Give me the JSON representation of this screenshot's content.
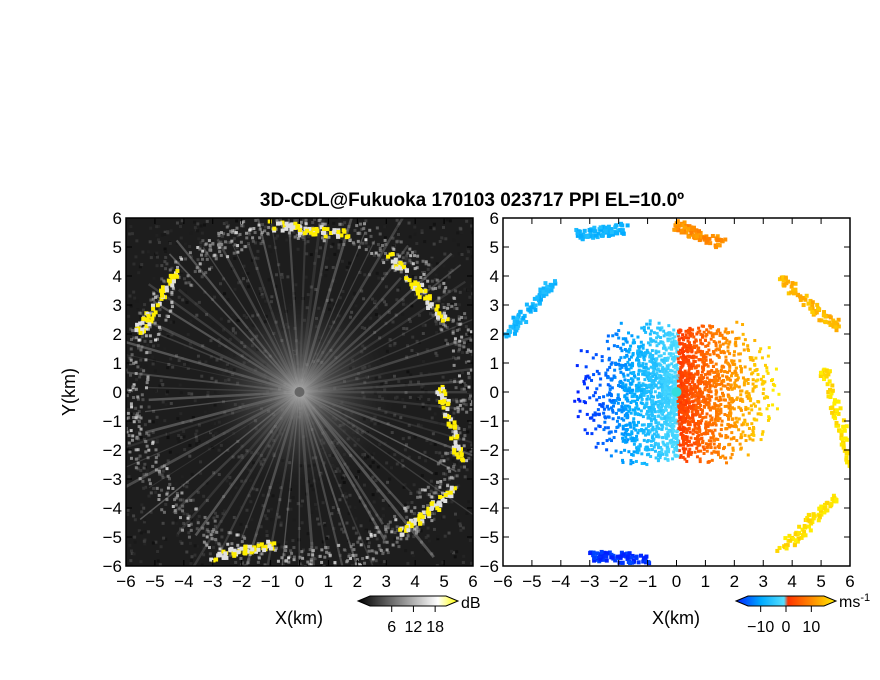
{
  "title": "3D-CDL@Fukuoka 170103 023717 PPI EL=10.0º",
  "chart_data": [
    {
      "type": "heatmap",
      "panel": "left",
      "quantity": "reflectivity",
      "xlabel": "X(km)",
      "ylabel": "Y(km)",
      "xlim": [
        -6,
        6
      ],
      "ylim": [
        -6,
        6
      ],
      "xticks": [
        -6,
        -5,
        -4,
        -3,
        -2,
        -1,
        0,
        1,
        2,
        3,
        4,
        5,
        6
      ],
      "yticks": [
        -6,
        -5,
        -4,
        -3,
        -2,
        -1,
        0,
        1,
        2,
        3,
        4,
        5,
        6
      ],
      "colorbar": {
        "label": "dB",
        "ticks": [
          6,
          12,
          18
        ],
        "range": [
          0,
          21
        ],
        "colors": [
          "#000000",
          "#ffffff",
          "#ffff00"
        ]
      },
      "radar_center": [
        0,
        0
      ],
      "echo_ring_radius_km": [
        5.3,
        6.0
      ],
      "strong_echo_segments_km": [
        {
          "from": [
            -5.7,
            2.0
          ],
          "to": [
            -4.3,
            4.2
          ]
        },
        {
          "from": [
            -1.0,
            5.8
          ],
          "to": [
            1.5,
            5.5
          ]
        },
        {
          "from": [
            3.0,
            4.8
          ],
          "to": [
            5.0,
            2.5
          ]
        },
        {
          "from": [
            4.8,
            0.2
          ],
          "to": [
            5.5,
            -2.3
          ]
        },
        {
          "from": [
            3.5,
            -4.8
          ],
          "to": [
            5.3,
            -3.3
          ]
        },
        {
          "from": [
            -3.0,
            -5.6
          ],
          "to": [
            -1.0,
            -5.2
          ]
        }
      ]
    },
    {
      "type": "heatmap",
      "panel": "right",
      "quantity": "doppler velocity",
      "xlabel": "X(km)",
      "xlim": [
        -6,
        6
      ],
      "ylim": [
        -6,
        6
      ],
      "xticks": [
        -6,
        -5,
        -4,
        -3,
        -2,
        -1,
        0,
        1,
        2,
        3,
        4,
        5,
        6
      ],
      "yticks": [
        -6,
        -5,
        -4,
        -3,
        -2,
        -1,
        0,
        1,
        2,
        3,
        4,
        5,
        6
      ],
      "colorbar": {
        "label": "ms",
        "exponent": "-1",
        "ticks": [
          -10,
          0,
          10
        ],
        "range": [
          -15,
          15
        ],
        "colors": [
          "#0020ff",
          "#00aaff",
          "#55dfff",
          "#ff3300",
          "#ff8800",
          "#ffee00"
        ]
      },
      "velocity_pattern": "negative (toward radar) on west side, positive (away) on east side, zero line near x=0",
      "echo_arcs": [
        {
          "from": [
            -6.0,
            2.0
          ],
          "to": [
            -4.2,
            4.0
          ],
          "velocity": -6
        },
        {
          "from": [
            -3.5,
            5.5
          ],
          "to": [
            -1.8,
            5.7
          ],
          "velocity": -6
        },
        {
          "from": [
            0.0,
            5.8
          ],
          "to": [
            1.5,
            5.2
          ],
          "velocity": 8
        },
        {
          "from": [
            3.5,
            4.0
          ],
          "to": [
            5.5,
            2.3
          ],
          "velocity": 11
        },
        {
          "from": [
            5.0,
            1.0
          ],
          "to": [
            6.0,
            -2.5
          ],
          "velocity": 14
        },
        {
          "from": [
            3.5,
            -5.5
          ],
          "to": [
            5.5,
            -3.5
          ],
          "velocity": 14
        },
        {
          "from": [
            -3.0,
            -5.6
          ],
          "to": [
            -1.0,
            -5.7
          ],
          "velocity": -14
        }
      ]
    }
  ]
}
